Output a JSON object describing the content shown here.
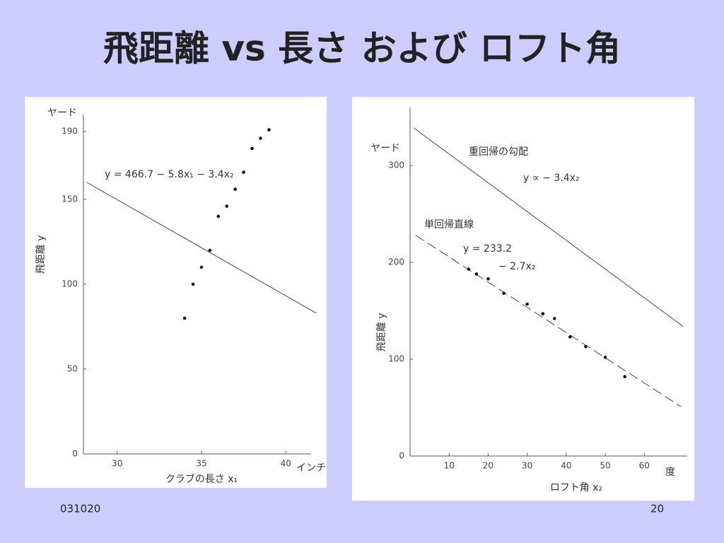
{
  "slide": {
    "title": "飛距離 vs 長さ および ロフト角",
    "date": "031020",
    "page": "20"
  },
  "chart_data": [
    {
      "type": "scatter",
      "y_unit": "ヤード",
      "ylabel": "飛距離 y",
      "xlabel": "クラブの長さ x₁",
      "x_unit": "インチ",
      "x": [
        34,
        34.5,
        35,
        35.5,
        36,
        36.5,
        37,
        37.5,
        38,
        38.5,
        39
      ],
      "values": [
        80,
        100,
        110,
        120,
        140,
        146,
        156,
        166,
        180,
        186,
        191
      ],
      "color": "#111111",
      "lines": [
        {
          "x": [
            28.2,
            41.8
          ],
          "y": [
            160,
            83
          ],
          "dashed": false
        }
      ],
      "annotations": [
        "y = 466.7 − 5.8x₁ − 3.4x₂"
      ],
      "xlim": [
        28,
        41.5
      ],
      "ylim": [
        0,
        200
      ],
      "xticks": [
        30,
        35,
        40
      ],
      "yticks": [
        0,
        50,
        100,
        150,
        190
      ]
    },
    {
      "type": "scatter",
      "y_unit": "ヤード",
      "ylabel": "飛距離 y",
      "xlabel": "ロフト角 x₂",
      "x_unit": "度",
      "x": [
        15,
        17,
        20,
        24,
        30,
        34,
        37,
        41,
        45,
        50,
        55
      ],
      "values": [
        193,
        188,
        183,
        168,
        157,
        147,
        142,
        123,
        113,
        102,
        82
      ],
      "color": "#111111",
      "lines": [
        {
          "x": [
            0.9,
            69.9
          ],
          "y": [
            339,
            134
          ],
          "dashed": false
        },
        {
          "x": [
            1.4,
            69.4
          ],
          "y": [
            228,
            51
          ],
          "dashed": true
        }
      ],
      "annotations": [
        "重回帰の勾配",
        "y ∝ − 3.4x₂",
        "単回帰直線",
        "y = 233.2",
        "− 2.7x₂"
      ],
      "xlim": [
        0,
        71
      ],
      "ylim": [
        0,
        360
      ],
      "xticks": [
        10,
        20,
        30,
        40,
        50,
        60
      ],
      "yticks": [
        0,
        100,
        200,
        300
      ]
    }
  ]
}
